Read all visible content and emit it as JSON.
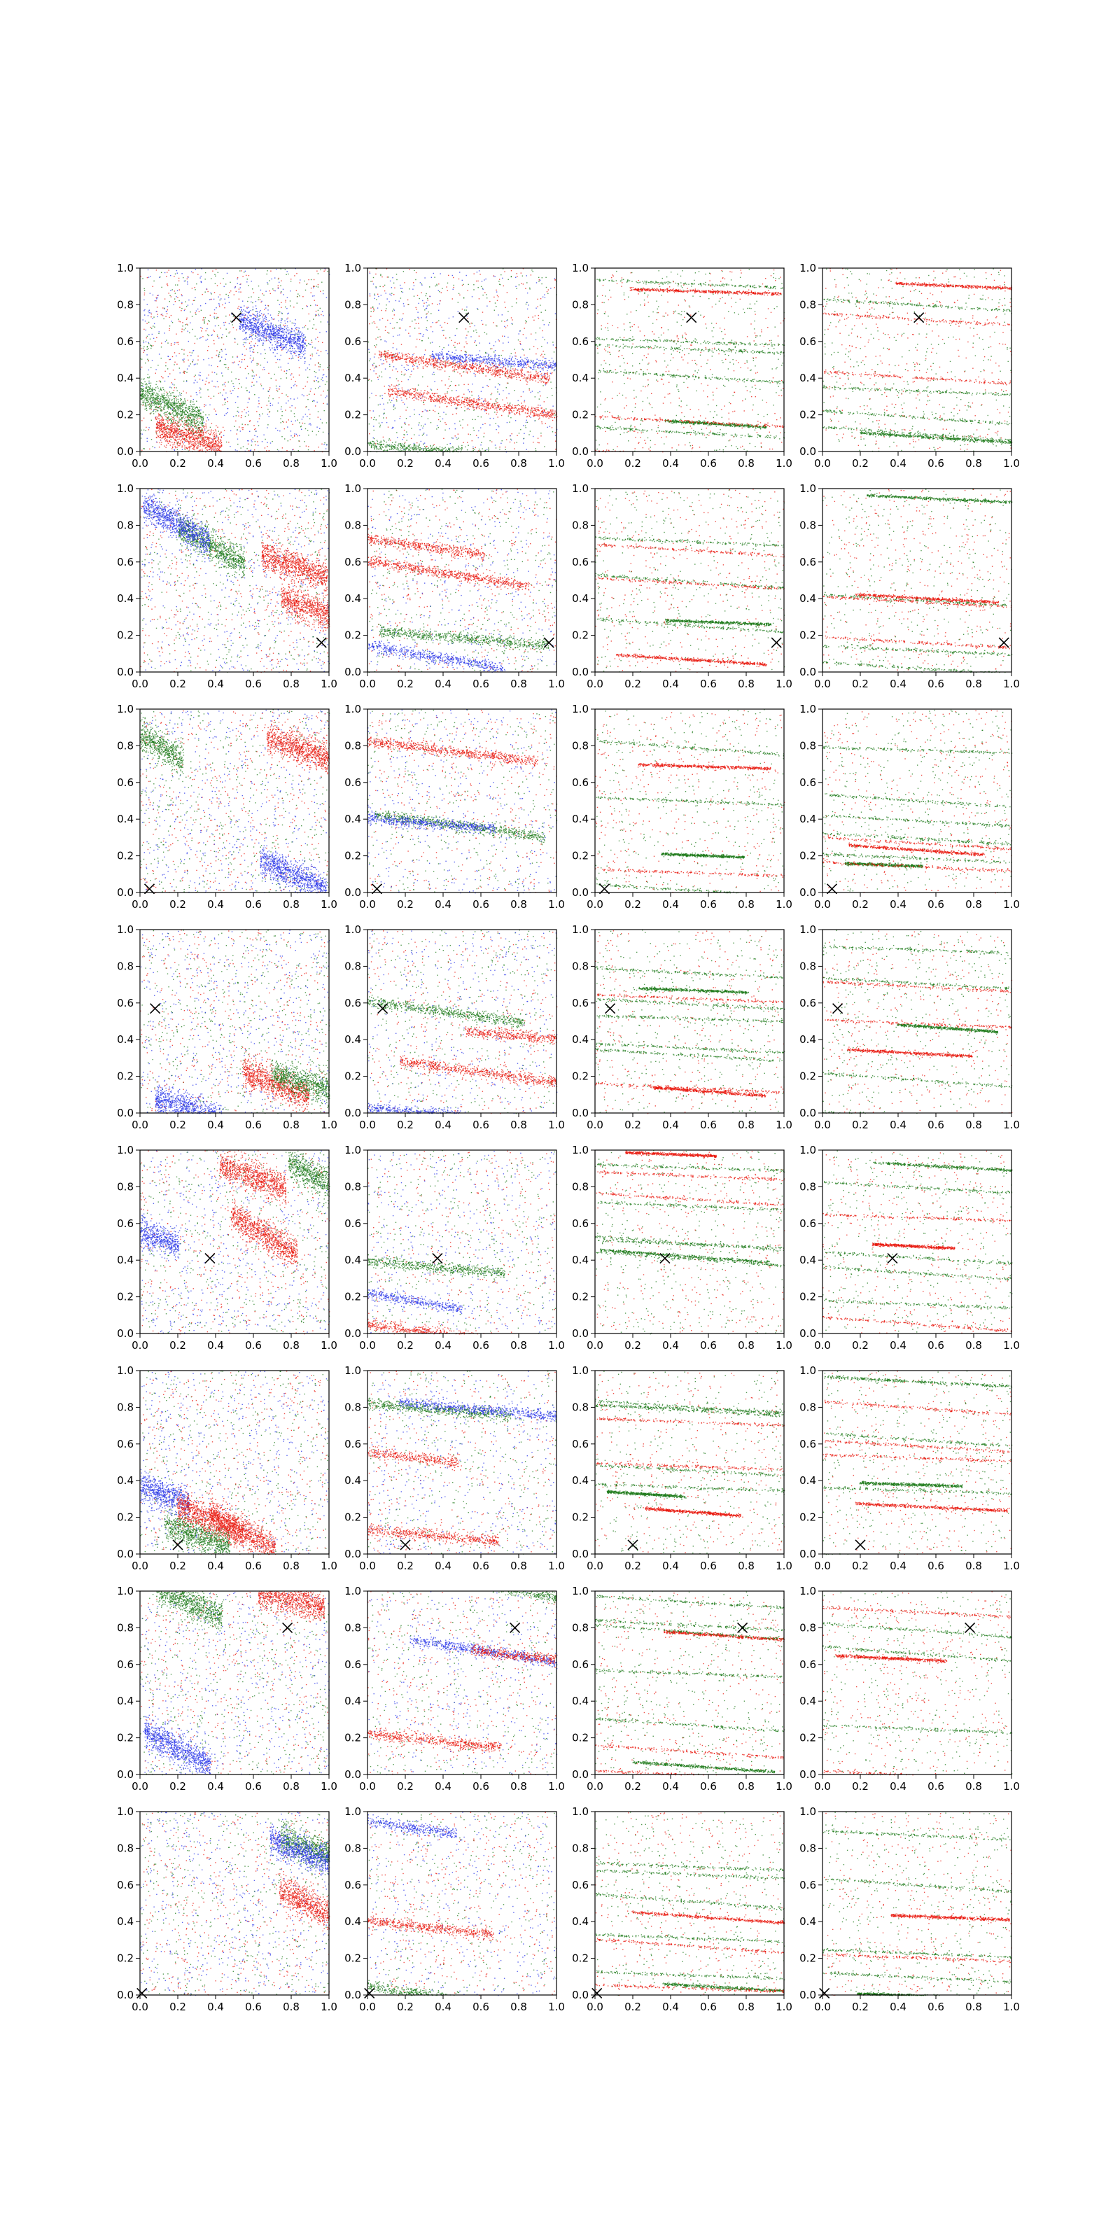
{
  "figure": {
    "rows": 8,
    "cols": 4
  },
  "colors": {
    "red": "#e8180e",
    "green": "#1e7a1a",
    "blue": "#2a36e8",
    "marker": "#000000",
    "axis": "#000000"
  },
  "chart_data": {
    "type": "scatter",
    "xlim": [
      0,
      1
    ],
    "ylim": [
      0,
      1
    ],
    "xticks": [
      "0.0",
      "0.2",
      "0.4",
      "0.6",
      "0.8",
      "1.0"
    ],
    "yticks": [
      "0.0",
      "0.2",
      "0.4",
      "0.6",
      "0.8",
      "1.0"
    ],
    "marker_symbol": "x",
    "grid": false,
    "legend": "none",
    "row_markers": [
      {
        "row": 1,
        "x": 0.51,
        "y": 0.73
      },
      {
        "row": 2,
        "x": 0.96,
        "y": 0.16
      },
      {
        "row": 3,
        "x": 0.05,
        "y": 0.02
      },
      {
        "row": 4,
        "x": 0.08,
        "y": 0.57
      },
      {
        "row": 5,
        "x": 0.37,
        "y": 0.41
      },
      {
        "row": 6,
        "x": 0.2,
        "y": 0.05
      },
      {
        "row": 7,
        "x": 0.78,
        "y": 0.8
      },
      {
        "row": 8,
        "x": 0.01,
        "y": 0.01
      }
    ],
    "column_styles": [
      {
        "column": 1,
        "pattern": "diffuse slanted clusters",
        "series": [
          "red",
          "green",
          "blue"
        ]
      },
      {
        "column": 2,
        "pattern": "slanted bands",
        "series": [
          "red",
          "green",
          "blue"
        ]
      },
      {
        "column": 3,
        "pattern": "thin near-horizontal lines",
        "series": [
          "red",
          "green"
        ]
      },
      {
        "column": 4,
        "pattern": "thin near-horizontal lines",
        "series": [
          "red",
          "green"
        ]
      }
    ]
  }
}
